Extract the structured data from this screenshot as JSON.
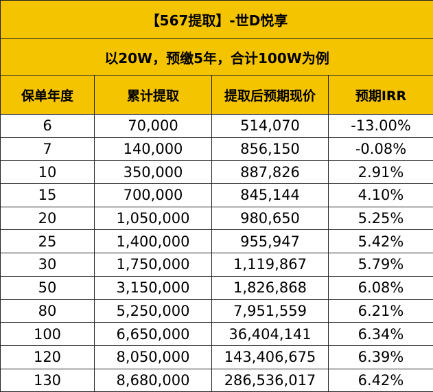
{
  "title": "【567提取】-世D悦享",
  "subtitle": "以20W，预缴5年，合计100W为例",
  "headers": [
    "保单年度",
    "累计提取",
    "提取后预期现价",
    "预期IRR"
  ],
  "rows": [
    [
      "6",
      "70,000",
      "514,070",
      "-13.00%"
    ],
    [
      "7",
      "140,000",
      "856,150",
      "-0.08%"
    ],
    [
      "10",
      "350,000",
      "887,826",
      "2.91%"
    ],
    [
      "15",
      "700,000",
      "845,144",
      "4.10%"
    ],
    [
      "20",
      "1,050,000",
      "980,650",
      "5.25%"
    ],
    [
      "25",
      "1,400,000",
      "955,947",
      "5.42%"
    ],
    [
      "30",
      "1,750,000",
      "1,119,867",
      "5.79%"
    ],
    [
      "50",
      "3,150,000",
      "1,826,868",
      "6.08%"
    ],
    [
      "80",
      "5,250,000",
      "7,951,559",
      "6.21%"
    ],
    [
      "100",
      "6,650,000",
      "36,404,141",
      "6.34%"
    ],
    [
      "120",
      "8,050,000",
      "143,406,675",
      "6.39%"
    ],
    [
      "130",
      "8,680,000",
      "286,536,017",
      "6.42%"
    ]
  ],
  "colors": {
    "header_fill": "#f5c400",
    "border": "#222222"
  }
}
